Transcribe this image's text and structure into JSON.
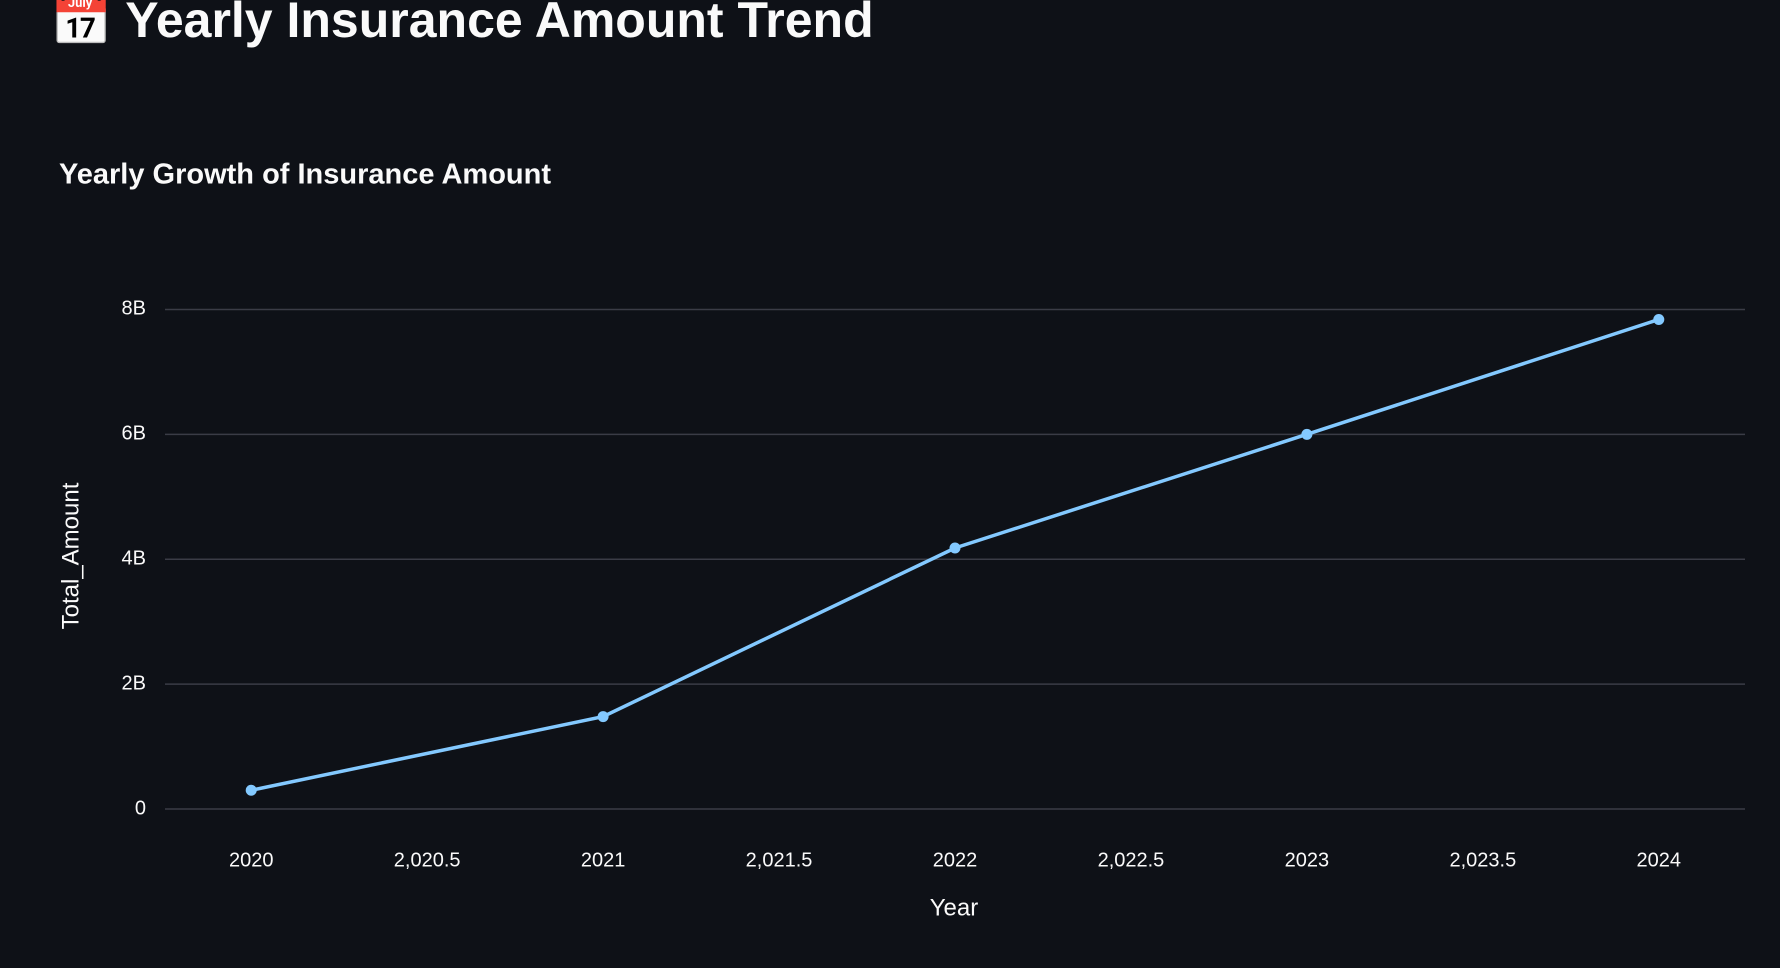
{
  "header": {
    "title": "📅 Yearly Insurance Amount Trend"
  },
  "chart_data": {
    "type": "line",
    "title": "Yearly Growth of Insurance Amount",
    "x_label": "Year",
    "y_label": "Total_Amount",
    "x": [
      2020,
      2021,
      2022,
      2023,
      2024
    ],
    "series": [
      {
        "name": "Total_Amount",
        "color": "#83c9ff",
        "values": [
          300000000,
          1480000000,
          4180000000,
          6000000000,
          7840000000
        ]
      }
    ],
    "xlim": [
      2019.755,
      2024.245
    ],
    "xticks": [
      2020,
      {
        "value": 2020.5,
        "label": "2,020.5"
      },
      2021,
      {
        "value": 2021.5,
        "label": "2,021.5"
      },
      2022,
      {
        "value": 2022.5,
        "label": "2,022.5"
      },
      2023,
      {
        "value": 2023.5,
        "label": "2,023.5"
      },
      2024
    ],
    "ylim": [
      0,
      8600000000
    ],
    "yticks": [
      0,
      {
        "value": 2000000000,
        "label": "2B"
      },
      {
        "value": 4000000000,
        "label": "4B"
      },
      {
        "value": 6000000000,
        "label": "6B"
      },
      {
        "value": 8000000000,
        "label": "8B"
      }
    ],
    "grid": true,
    "markers": true
  }
}
